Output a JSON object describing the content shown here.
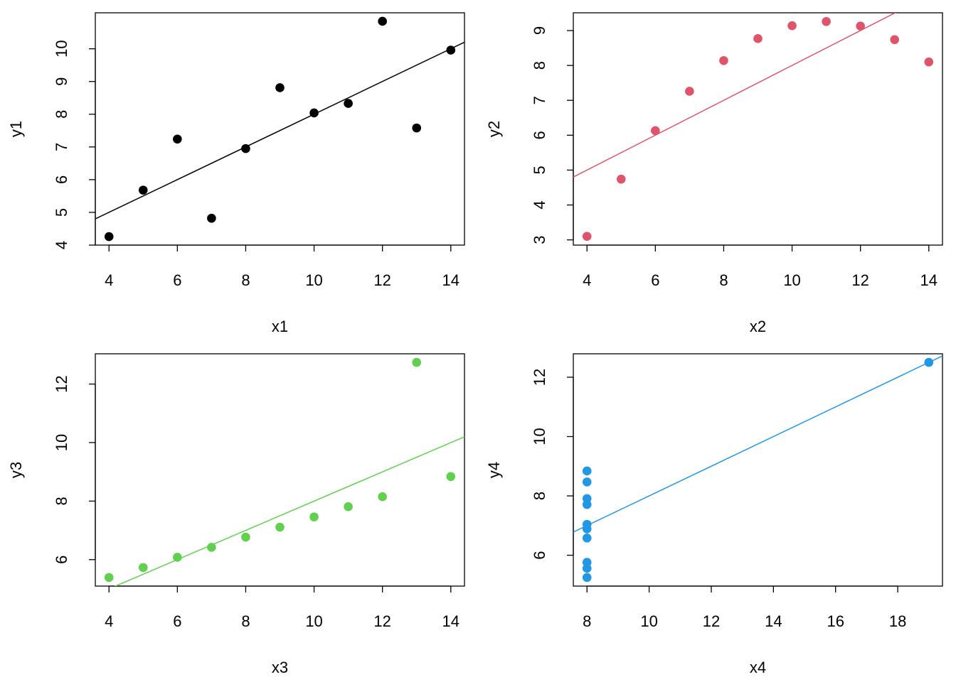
{
  "chart_data": [
    {
      "type": "scatter",
      "xlabel": "x1",
      "ylabel": "y1",
      "color": "#000000",
      "x": [
        10,
        8,
        13,
        9,
        11,
        14,
        6,
        4,
        12,
        7,
        5
      ],
      "y": [
        8.04,
        6.95,
        7.58,
        8.81,
        8.33,
        9.96,
        7.24,
        4.26,
        10.84,
        4.82,
        5.68
      ],
      "xlim": [
        3.6,
        14.4
      ],
      "ylim": [
        4.0,
        11.1
      ],
      "xticks": [
        4,
        6,
        8,
        10,
        12,
        14
      ],
      "yticks": [
        4,
        5,
        6,
        7,
        8,
        9,
        10
      ],
      "fit": {
        "intercept": 3.0001,
        "slope": 0.5001
      }
    },
    {
      "type": "scatter",
      "xlabel": "x2",
      "ylabel": "y2",
      "color": "#DF536B",
      "x": [
        10,
        8,
        13,
        9,
        11,
        14,
        6,
        4,
        12,
        7,
        5
      ],
      "y": [
        9.14,
        8.14,
        8.74,
        8.77,
        9.26,
        8.1,
        6.13,
        3.1,
        9.13,
        7.26,
        4.74
      ],
      "xlim": [
        3.6,
        14.4
      ],
      "ylim": [
        2.85,
        9.51
      ],
      "xticks": [
        4,
        6,
        8,
        10,
        12,
        14
      ],
      "yticks": [
        3,
        4,
        5,
        6,
        7,
        8,
        9
      ],
      "fit": {
        "intercept": 3.0009,
        "slope": 0.5
      }
    },
    {
      "type": "scatter",
      "xlabel": "x3",
      "ylabel": "y3",
      "color": "#61D04F",
      "x": [
        10,
        8,
        13,
        9,
        11,
        14,
        6,
        4,
        12,
        7,
        5
      ],
      "y": [
        7.46,
        6.77,
        12.74,
        7.11,
        7.81,
        8.84,
        6.08,
        5.39,
        8.15,
        6.42,
        5.73
      ],
      "xlim": [
        3.6,
        14.4
      ],
      "ylim": [
        5.096,
        13.034
      ],
      "xticks": [
        4,
        6,
        8,
        10,
        12,
        14
      ],
      "yticks": [
        6,
        8,
        10,
        12
      ],
      "fit": {
        "intercept": 3.0025,
        "slope": 0.4997
      }
    },
    {
      "type": "scatter",
      "xlabel": "x4",
      "ylabel": "y4",
      "color": "#2297E6",
      "x": [
        8,
        8,
        8,
        8,
        8,
        8,
        8,
        19,
        8,
        8,
        8
      ],
      "y": [
        6.58,
        5.76,
        7.71,
        8.84,
        8.47,
        7.04,
        5.25,
        12.5,
        5.56,
        7.91,
        6.89
      ],
      "xlim": [
        7.56,
        19.44
      ],
      "ylim": [
        4.96,
        12.79
      ],
      "xticks": [
        8,
        10,
        12,
        14,
        16,
        18
      ],
      "yticks": [
        6,
        8,
        10,
        12
      ],
      "fit": {
        "intercept": 3.0017,
        "slope": 0.4999
      }
    }
  ]
}
